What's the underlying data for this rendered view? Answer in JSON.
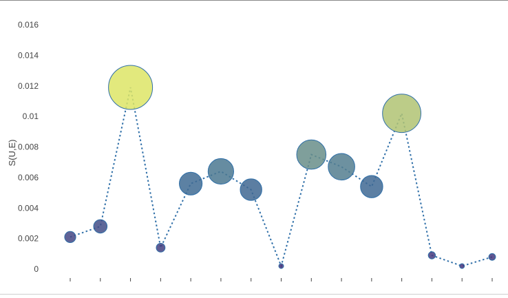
{
  "chart_data": {
    "type": "scatter",
    "y_axis_label": "S(U,E)",
    "ylim": [
      0,
      0.016
    ],
    "y_ticks": [
      "0",
      "0.002",
      "0.004",
      "0.006",
      "0.008",
      "0.01",
      "0.012",
      "0.014",
      "0.016"
    ],
    "y_tick_values": [
      0,
      0.002,
      0.004,
      0.006,
      0.008,
      0.01,
      0.012,
      0.014,
      0.016
    ],
    "x_tick_count": 15,
    "values": [
      0.0021,
      0.0028,
      0.0119,
      0.0014,
      0.0056,
      0.0064,
      0.0052,
      0.0002,
      0.0075,
      0.0067,
      0.0054,
      0.0102,
      0.0009,
      0.0002,
      0.0008
    ],
    "line_style": "dotted",
    "grid": false,
    "colors": {
      "line": "#2f6fa8",
      "low": "#46307a",
      "mid": "#3f6f95",
      "high": "#dde566",
      "border_top": "#888888",
      "border_bottom": "#cfcfcf"
    }
  }
}
